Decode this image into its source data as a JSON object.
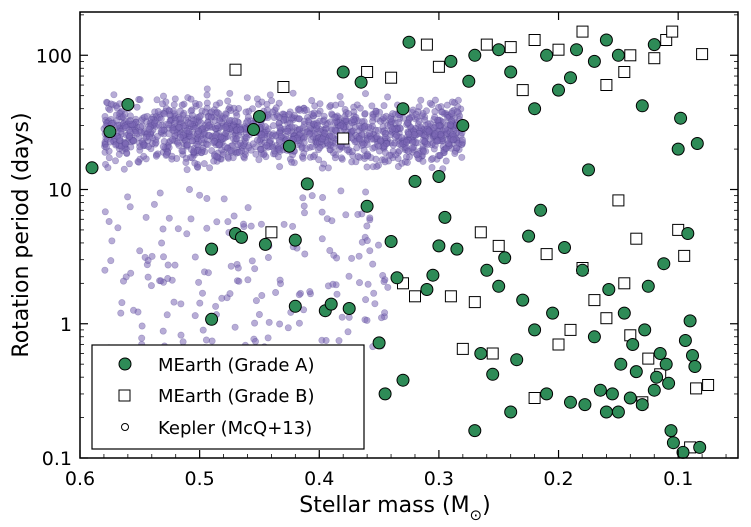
{
  "chart_data": {
    "type": "scatter",
    "title": "",
    "xlabel": "Stellar mass (M",
    "xlabel_subscript": "⊙",
    "xlabel_close": ")",
    "ylabel": "Rotation period (days)",
    "xlim": [
      0.6,
      0.05
    ],
    "ylim": [
      0.1,
      210
    ],
    "yscale": "log",
    "x_ticks": [
      {
        "value": 0.6,
        "label": "0.6"
      },
      {
        "value": 0.5,
        "label": "0.5"
      },
      {
        "value": 0.4,
        "label": "0.4"
      },
      {
        "value": 0.3,
        "label": "0.3"
      },
      {
        "value": 0.2,
        "label": "0.2"
      },
      {
        "value": 0.1,
        "label": "0.1"
      }
    ],
    "y_ticks": [
      {
        "value": 0.1,
        "label": "0.1"
      },
      {
        "value": 1,
        "label": "1"
      },
      {
        "value": 10,
        "label": "10"
      },
      {
        "value": 100,
        "label": "100"
      }
    ],
    "grid": false,
    "legend_position": "bottom-left",
    "legend": [
      {
        "label": "MEarth (Grade A)",
        "marker": "circle",
        "color": "#2e8b57"
      },
      {
        "label": "MEarth (Grade B)",
        "marker": "square",
        "color": "#ffffff"
      },
      {
        "label": "Kepler (McQ+13)",
        "marker": "small-circle",
        "color": "#7b68b5"
      }
    ],
    "series": [
      {
        "name": "MEarth (Grade A)",
        "marker": "circle",
        "color": "#2e8b57",
        "points": [
          [
            0.59,
            14.5
          ],
          [
            0.575,
            27
          ],
          [
            0.56,
            43
          ],
          [
            0.49,
            3.6
          ],
          [
            0.49,
            1.08
          ],
          [
            0.47,
            4.7
          ],
          [
            0.465,
            4.4
          ],
          [
            0.455,
            28
          ],
          [
            0.45,
            35
          ],
          [
            0.445,
            3.9
          ],
          [
            0.425,
            21
          ],
          [
            0.42,
            4.2
          ],
          [
            0.42,
            1.35
          ],
          [
            0.41,
            11
          ],
          [
            0.395,
            1.25
          ],
          [
            0.39,
            1.4
          ],
          [
            0.38,
            75
          ],
          [
            0.375,
            1.3
          ],
          [
            0.365,
            63
          ],
          [
            0.36,
            7.5
          ],
          [
            0.35,
            0.72
          ],
          [
            0.345,
            0.3
          ],
          [
            0.34,
            4.1
          ],
          [
            0.335,
            2.2
          ],
          [
            0.33,
            0.38
          ],
          [
            0.33,
            40
          ],
          [
            0.325,
            125
          ],
          [
            0.32,
            11.5
          ],
          [
            0.31,
            1.8
          ],
          [
            0.305,
            2.3
          ],
          [
            0.3,
            3.8
          ],
          [
            0.3,
            12.5
          ],
          [
            0.295,
            6.2
          ],
          [
            0.29,
            90
          ],
          [
            0.285,
            3.6
          ],
          [
            0.28,
            30
          ],
          [
            0.275,
            64
          ],
          [
            0.27,
            100
          ],
          [
            0.27,
            0.16
          ],
          [
            0.265,
            0.6
          ],
          [
            0.26,
            2.5
          ],
          [
            0.255,
            0.42
          ],
          [
            0.25,
            1.9
          ],
          [
            0.245,
            3.1
          ],
          [
            0.24,
            0.22
          ],
          [
            0.235,
            0.54
          ],
          [
            0.23,
            1.5
          ],
          [
            0.225,
            4.5
          ],
          [
            0.22,
            0.9
          ],
          [
            0.215,
            7
          ],
          [
            0.21,
            0.3
          ],
          [
            0.205,
            1.2
          ],
          [
            0.2,
            55
          ],
          [
            0.195,
            3.7
          ],
          [
            0.19,
            0.26
          ],
          [
            0.185,
            110
          ],
          [
            0.18,
            2.5
          ],
          [
            0.178,
            0.25
          ],
          [
            0.175,
            14
          ],
          [
            0.17,
            0.8
          ],
          [
            0.165,
            0.32
          ],
          [
            0.16,
            0.22
          ],
          [
            0.158,
            1.8
          ],
          [
            0.155,
            0.3
          ],
          [
            0.15,
            0.22
          ],
          [
            0.148,
            0.5
          ],
          [
            0.145,
            1.2
          ],
          [
            0.14,
            0.28
          ],
          [
            0.138,
            0.7
          ],
          [
            0.135,
            0.44
          ],
          [
            0.13,
            0.25
          ],
          [
            0.128,
            0.9
          ],
          [
            0.125,
            1.9
          ],
          [
            0.12,
            0.32
          ],
          [
            0.118,
            0.4
          ],
          [
            0.115,
            0.6
          ],
          [
            0.112,
            2.8
          ],
          [
            0.11,
            0.5
          ],
          [
            0.108,
            0.36
          ],
          [
            0.106,
            0.16
          ],
          [
            0.104,
            0.13
          ],
          [
            0.1,
            20
          ],
          [
            0.098,
            34
          ],
          [
            0.096,
            0.11
          ],
          [
            0.094,
            0.75
          ],
          [
            0.092,
            4.7
          ],
          [
            0.09,
            1.05
          ],
          [
            0.088,
            0.58
          ],
          [
            0.086,
            0.48
          ],
          [
            0.084,
            22
          ],
          [
            0.082,
            0.12
          ],
          [
            0.13,
            42
          ],
          [
            0.12,
            120
          ],
          [
            0.17,
            90
          ],
          [
            0.16,
            130
          ],
          [
            0.21,
            100
          ],
          [
            0.22,
            40
          ],
          [
            0.24,
            75
          ],
          [
            0.25,
            110
          ],
          [
            0.19,
            68
          ],
          [
            0.15,
            100
          ]
        ]
      },
      {
        "name": "MEarth (Grade B)",
        "marker": "square",
        "color": "#ffffff",
        "points": [
          [
            0.47,
            78
          ],
          [
            0.43,
            58
          ],
          [
            0.44,
            4.8
          ],
          [
            0.38,
            24
          ],
          [
            0.36,
            75
          ],
          [
            0.34,
            68
          ],
          [
            0.33,
            2.0
          ],
          [
            0.32,
            1.6
          ],
          [
            0.31,
            120
          ],
          [
            0.3,
            82
          ],
          [
            0.29,
            1.6
          ],
          [
            0.28,
            0.65
          ],
          [
            0.27,
            1.45
          ],
          [
            0.265,
            4.8
          ],
          [
            0.26,
            120
          ],
          [
            0.255,
            0.6
          ],
          [
            0.25,
            3.8
          ],
          [
            0.24,
            115
          ],
          [
            0.23,
            55
          ],
          [
            0.22,
            0.28
          ],
          [
            0.21,
            3.3
          ],
          [
            0.2,
            0.7
          ],
          [
            0.19,
            0.9
          ],
          [
            0.18,
            2.6
          ],
          [
            0.17,
            1.5
          ],
          [
            0.16,
            1.1
          ],
          [
            0.15,
            8.3
          ],
          [
            0.145,
            2.0
          ],
          [
            0.14,
            0.82
          ],
          [
            0.135,
            4.3
          ],
          [
            0.13,
            0.26
          ],
          [
            0.125,
            0.55
          ],
          [
            0.12,
            95
          ],
          [
            0.115,
            0.42
          ],
          [
            0.11,
            130
          ],
          [
            0.105,
            150
          ],
          [
            0.1,
            5
          ],
          [
            0.095,
            3.2
          ],
          [
            0.085,
            0.33
          ],
          [
            0.08,
            102
          ],
          [
            0.075,
            0.35
          ],
          [
            0.09,
            0.12
          ],
          [
            0.2,
            110
          ],
          [
            0.16,
            60
          ],
          [
            0.18,
            150
          ],
          [
            0.14,
            100
          ],
          [
            0.145,
            75
          ],
          [
            0.22,
            130
          ]
        ]
      },
      {
        "name": "Kepler (McQ+13)",
        "marker": "small-circle",
        "color": "#7b68b5",
        "generator": "dense cloud 0.28-0.58 Msun at 15-50 d plus sparse scatter 0.6-3 d",
        "points": []
      }
    ]
  }
}
